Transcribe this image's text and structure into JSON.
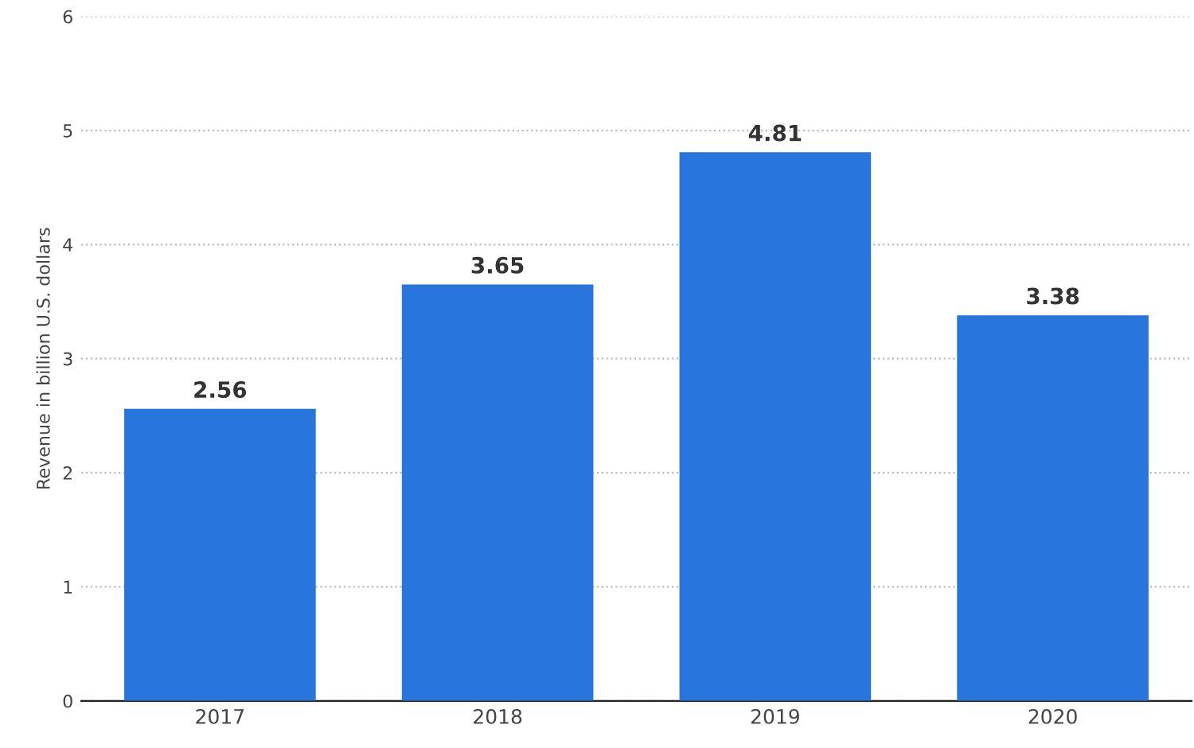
{
  "chart_data": {
    "type": "bar",
    "ylabel": "Revenue in billion U.S. dollars",
    "categories": [
      "2017",
      "2018",
      "2019",
      "2020"
    ],
    "values": [
      2.56,
      3.65,
      4.81,
      3.38
    ],
    "color": "#2876dd",
    "ylim": [
      0,
      6
    ],
    "yticks": [
      0,
      1,
      2,
      3,
      4,
      5,
      6
    ],
    "grid": "y",
    "data_labels": true
  }
}
